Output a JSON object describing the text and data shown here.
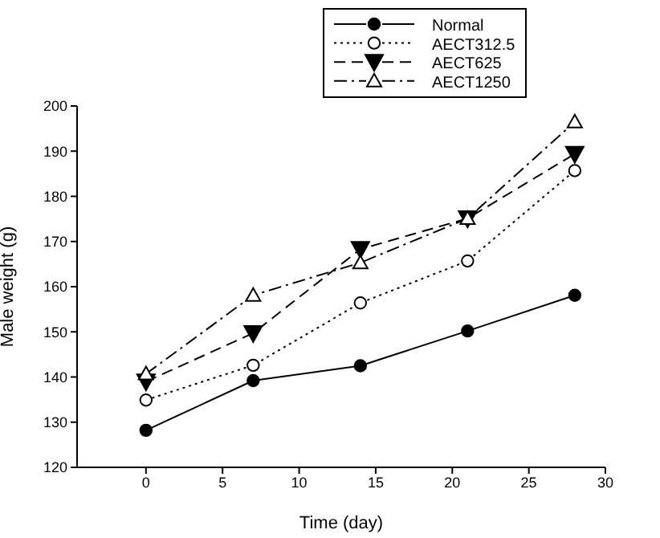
{
  "chart_data": {
    "type": "line",
    "xlabel": "Time (day)",
    "ylabel": "Male weight (g)",
    "x": [
      0,
      7,
      14,
      21,
      28
    ],
    "series": [
      {
        "name": "Normal",
        "color": "#000000",
        "marker": "circle",
        "line_style": "solid",
        "values": [
          128.2,
          139.2,
          142.5,
          150.2,
          158.1
        ]
      },
      {
        "name": "AECT312.5",
        "color": "#000000",
        "marker": "circle-open",
        "line_style": "dotted",
        "values": [
          134.9,
          142.6,
          156.4,
          165.7,
          185.7
        ]
      },
      {
        "name": "AECT625",
        "color": "#000000",
        "marker": "triangle-down",
        "line_style": "dashed",
        "values": [
          139,
          149.7,
          168.3,
          175.1,
          189.4
        ]
      },
      {
        "name": "AECT1250",
        "color": "#000000",
        "marker": "triangle-open",
        "line_style": "dashdot",
        "values": [
          140.7,
          158.1,
          165.3,
          175.1,
          196.5
        ]
      }
    ],
    "xlim": [
      -4.5,
      30
    ],
    "xticks": [
      0,
      5,
      10,
      15,
      20,
      25,
      30
    ],
    "ylim": [
      120,
      200
    ],
    "yticks": [
      120,
      130,
      140,
      150,
      160,
      170,
      180,
      190,
      200
    ],
    "grid": false,
    "legend": "top"
  }
}
